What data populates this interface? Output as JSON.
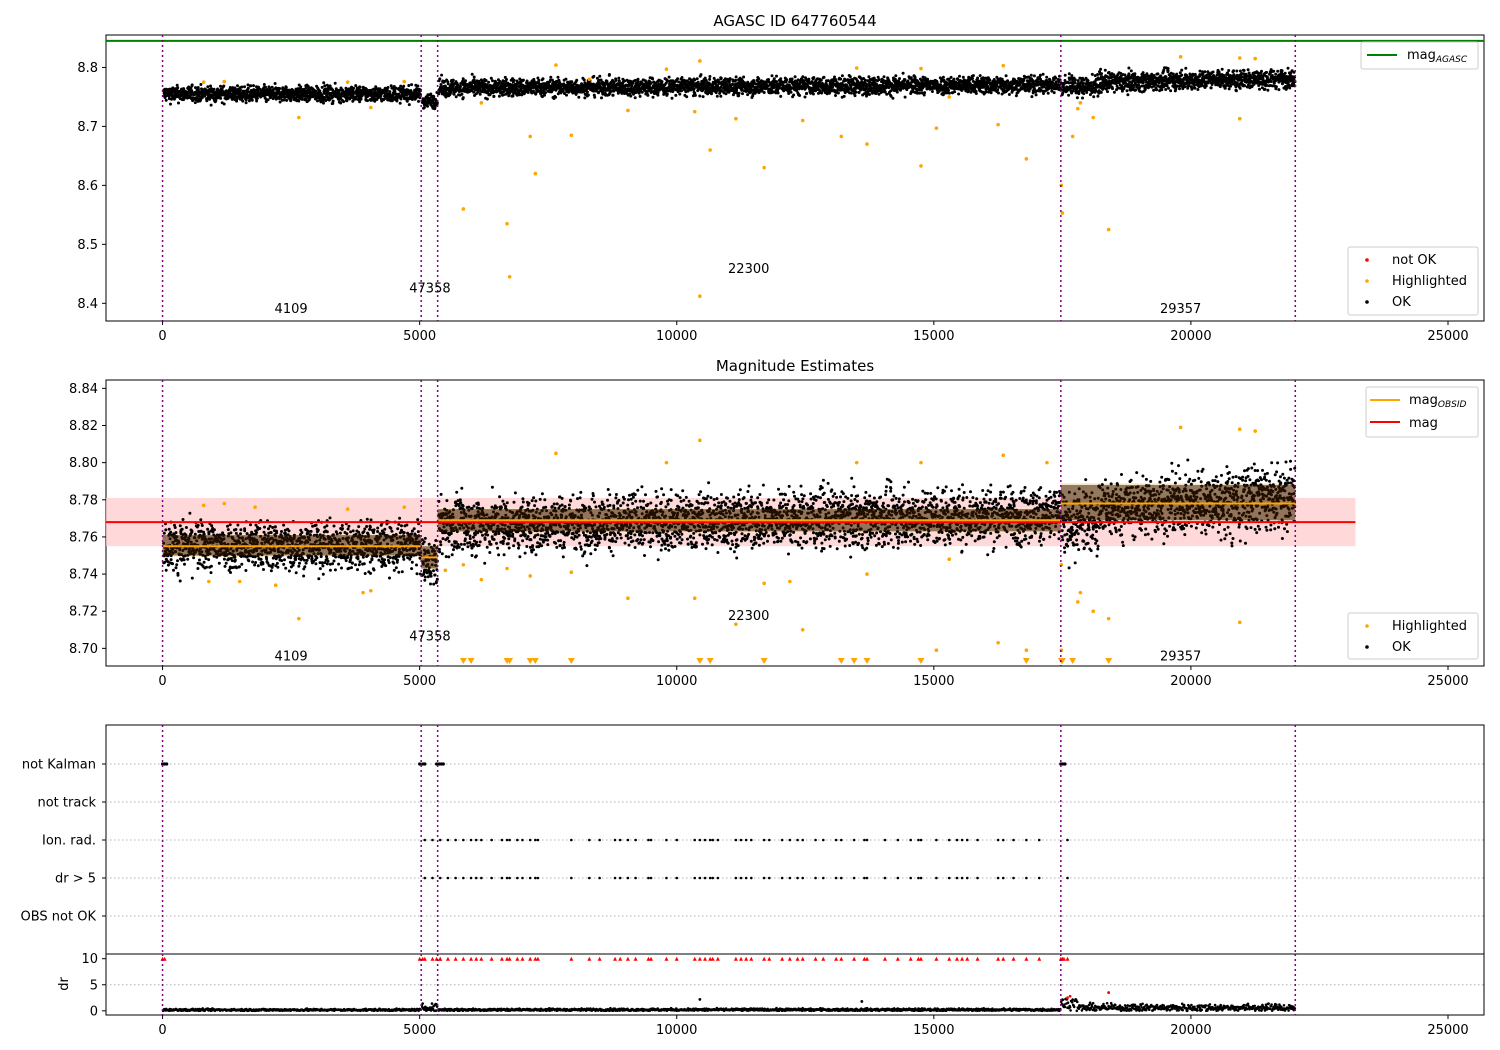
{
  "colors": {
    "agasc_line": "#008000",
    "obsid_line": "#ffa500",
    "mag_line": "#ff0000",
    "mag_band": "#ffcccc",
    "obsid_band": "#fde6c0",
    "highlighted": "#ffa500",
    "ok": "#000000",
    "not_ok": "#ff0000",
    "obs_boundary": "#800080",
    "grid": "#b0b0b0"
  },
  "chart_data": [
    {
      "name": "top",
      "type": "scatter",
      "title": "AGASC ID 647760544",
      "xlim": [
        -1100,
        25700
      ],
      "ylim": [
        8.37,
        8.855
      ],
      "xticks": [
        0,
        5000,
        10000,
        15000,
        20000,
        25000
      ],
      "yticks": [
        8.4,
        8.5,
        8.6,
        8.7,
        8.8
      ],
      "mag_agasc": 8.845,
      "obs_boundaries": [
        0,
        5030,
        5350,
        17470,
        22030
      ],
      "obsids": [
        {
          "label": "4109",
          "x": 2500,
          "y": 8.39
        },
        {
          "label": "47358",
          "x": 5200,
          "y": 8.425
        },
        {
          "label": "22300",
          "x": 11400,
          "y": 8.458
        },
        {
          "label": "29357",
          "x": 19800,
          "y": 8.39
        }
      ],
      "legend_upper": {
        "label_main": "mag",
        "label_sub": "AGASC"
      },
      "legend_lower": [
        "not OK",
        "Highlighted",
        "OK"
      ],
      "highlighted_points": [
        [
          2650,
          8.715
        ],
        [
          4050,
          8.732
        ],
        [
          5850,
          8.56
        ],
        [
          6700,
          8.535
        ],
        [
          6750,
          8.445
        ],
        [
          7150,
          8.683
        ],
        [
          7250,
          8.62
        ],
        [
          7950,
          8.685
        ],
        [
          10450,
          8.412
        ],
        [
          10650,
          8.66
        ],
        [
          11700,
          8.63
        ],
        [
          12450,
          8.71
        ],
        [
          13200,
          8.683
        ],
        [
          13700,
          8.67
        ],
        [
          14750,
          8.633
        ],
        [
          16800,
          8.645
        ],
        [
          17480,
          8.6
        ],
        [
          17500,
          8.553
        ],
        [
          17700,
          8.683
        ],
        [
          18400,
          8.525
        ],
        [
          10350,
          8.725
        ],
        [
          11150,
          8.713
        ],
        [
          15300,
          8.75
        ],
        [
          16250,
          8.703
        ],
        [
          20950,
          8.713
        ],
        [
          9050,
          8.727
        ],
        [
          15050,
          8.697
        ],
        [
          17800,
          8.73
        ],
        [
          17850,
          8.74
        ],
        [
          18100,
          8.715
        ],
        [
          7650,
          8.804
        ],
        [
          10450,
          8.811
        ],
        [
          19800,
          8.818
        ],
        [
          20950,
          8.816
        ],
        [
          21250,
          8.815
        ],
        [
          13500,
          8.799
        ],
        [
          14750,
          8.798
        ],
        [
          16350,
          8.803
        ],
        [
          8300,
          8.78
        ],
        [
          6200,
          8.74
        ],
        [
          9800,
          8.797
        ],
        [
          1200,
          8.776
        ],
        [
          800,
          8.775
        ],
        [
          4700,
          8.776
        ],
        [
          3600,
          8.775
        ]
      ]
    },
    {
      "name": "middle",
      "type": "scatter",
      "title": "Magnitude Estimates",
      "xlim": [
        -1100,
        25700
      ],
      "ylim": [
        8.6905,
        8.8445
      ],
      "xticks": [
        0,
        5000,
        10000,
        15000,
        20000,
        25000
      ],
      "yticks": [
        8.7,
        8.72,
        8.74,
        8.76,
        8.78,
        8.8,
        8.82,
        8.84
      ],
      "mag": 8.768,
      "mag_band": [
        8.755,
        8.781
      ],
      "mag_band_x": [
        -1100,
        23200
      ],
      "obs_boundaries": [
        0,
        5030,
        5350,
        17470,
        22030
      ],
      "obsid_mags": [
        {
          "x0": 0,
          "x1": 5030,
          "mag": 8.755,
          "lo": 8.749,
          "hi": 8.762
        },
        {
          "x0": 5030,
          "x1": 5350,
          "mag": 8.749,
          "lo": 8.742,
          "hi": 8.756
        },
        {
          "x0": 5350,
          "x1": 17470,
          "mag": 8.769,
          "lo": 8.762,
          "hi": 8.776
        },
        {
          "x0": 17470,
          "x1": 22030,
          "mag": 8.778,
          "lo": 8.768,
          "hi": 8.789
        }
      ],
      "obsids": [
        {
          "label": "4109",
          "x": 2500,
          "y": 8.6955
        },
        {
          "label": "47358",
          "x": 5200,
          "y": 8.7065
        },
        {
          "label": "22300",
          "x": 11400,
          "y": 8.7175
        },
        {
          "label": "29357",
          "x": 19800,
          "y": 8.6955
        }
      ],
      "legend_upper": [
        {
          "label_main": "mag",
          "label_sub": "OBSID"
        },
        {
          "label_main": "mag",
          "label_sub": ""
        }
      ],
      "legend_lower": [
        "Highlighted",
        "OK"
      ],
      "highlighted_points": [
        [
          9050,
          8.727
        ],
        [
          10350,
          8.727
        ],
        [
          11150,
          8.713
        ],
        [
          12450,
          8.71
        ],
        [
          15050,
          8.699
        ],
        [
          16250,
          8.703
        ],
        [
          20950,
          8.714
        ],
        [
          17800,
          8.725
        ],
        [
          17850,
          8.73
        ],
        [
          18100,
          8.72
        ],
        [
          18400,
          8.716
        ],
        [
          17480,
          8.699
        ],
        [
          16800,
          8.699
        ],
        [
          2650,
          8.716
        ],
        [
          4050,
          8.731
        ],
        [
          10450,
          8.812
        ],
        [
          19800,
          8.819
        ],
        [
          21250,
          8.817
        ],
        [
          20950,
          8.818
        ],
        [
          7650,
          8.805
        ],
        [
          14750,
          8.8
        ],
        [
          13500,
          8.8
        ],
        [
          16350,
          8.804
        ],
        [
          9800,
          8.8
        ],
        [
          5850,
          8.745
        ],
        [
          6700,
          8.743
        ],
        [
          7150,
          8.739
        ],
        [
          7950,
          8.741
        ],
        [
          11700,
          8.735
        ],
        [
          13700,
          8.74
        ],
        [
          1200,
          8.778
        ],
        [
          800,
          8.777
        ],
        [
          4700,
          8.776
        ],
        [
          3600,
          8.775
        ],
        [
          1800,
          8.776
        ],
        [
          15300,
          8.748
        ],
        [
          17200,
          8.8
        ],
        [
          17480,
          8.745
        ],
        [
          6200,
          8.737
        ],
        [
          12200,
          8.736
        ],
        [
          5500,
          8.742
        ],
        [
          1500,
          8.736
        ],
        [
          900,
          8.736
        ],
        [
          2200,
          8.734
        ],
        [
          3900,
          8.73
        ]
      ],
      "clipped_triangles_x": [
        5850,
        6000,
        6700,
        6750,
        7150,
        7250,
        7950,
        10450,
        10650,
        11700,
        13200,
        13450,
        13700,
        14750,
        16800,
        17480,
        17500,
        17700,
        18400
      ]
    },
    {
      "name": "flags",
      "type": "scatter",
      "xlim": [
        -1100,
        25700
      ],
      "categories": [
        "not Kalman",
        "not track",
        "Ion. rad.",
        "dr > 5",
        "OBS not OK"
      ],
      "obs_boundaries": [
        0,
        5030,
        5350,
        17470,
        22030
      ],
      "not_kalman_x": [
        0,
        40,
        80,
        5000,
        5060,
        5100,
        5330,
        5380,
        5420,
        5460,
        17470,
        17510,
        17550
      ],
      "ionrad_x": [
        5100,
        5250,
        5400,
        5550,
        5700,
        5850,
        6000,
        6100,
        6200,
        6400,
        6600,
        6700,
        6750,
        6900,
        7000,
        7150,
        7250,
        7300,
        7950,
        8300,
        8500,
        8800,
        8900,
        9050,
        9200,
        9450,
        9500,
        9800,
        10000,
        10350,
        10450,
        10550,
        10650,
        10700,
        10800,
        11150,
        11250,
        11350,
        11450,
        11700,
        11800,
        12050,
        12200,
        12350,
        12450,
        12700,
        12850,
        13100,
        13200,
        13450,
        13650,
        13700,
        14050,
        14300,
        14550,
        14700,
        14750,
        15050,
        15300,
        15450,
        15550,
        15650,
        15850,
        16250,
        16350,
        16550,
        16800,
        17050,
        17600
      ]
    },
    {
      "name": "dr",
      "type": "scatter",
      "ylabel": "dr",
      "xlim": [
        -1100,
        25700
      ],
      "ylim": [
        -0.8,
        10.9
      ],
      "xticks": [
        0,
        5000,
        10000,
        15000,
        20000,
        25000
      ],
      "yticks": [
        0,
        5,
        10
      ],
      "obs_boundaries": [
        0,
        5030,
        5350,
        17470,
        22030
      ],
      "dr_level_by_obs": [
        0.3,
        1.0,
        0.35,
        1.0
      ],
      "outliers": [
        [
          18400,
          3.5
        ],
        [
          17650,
          2.8
        ],
        [
          17600,
          2.5
        ],
        [
          10450,
          2.2
        ],
        [
          13600,
          1.8
        ]
      ],
      "clipped_at": 10
    }
  ]
}
